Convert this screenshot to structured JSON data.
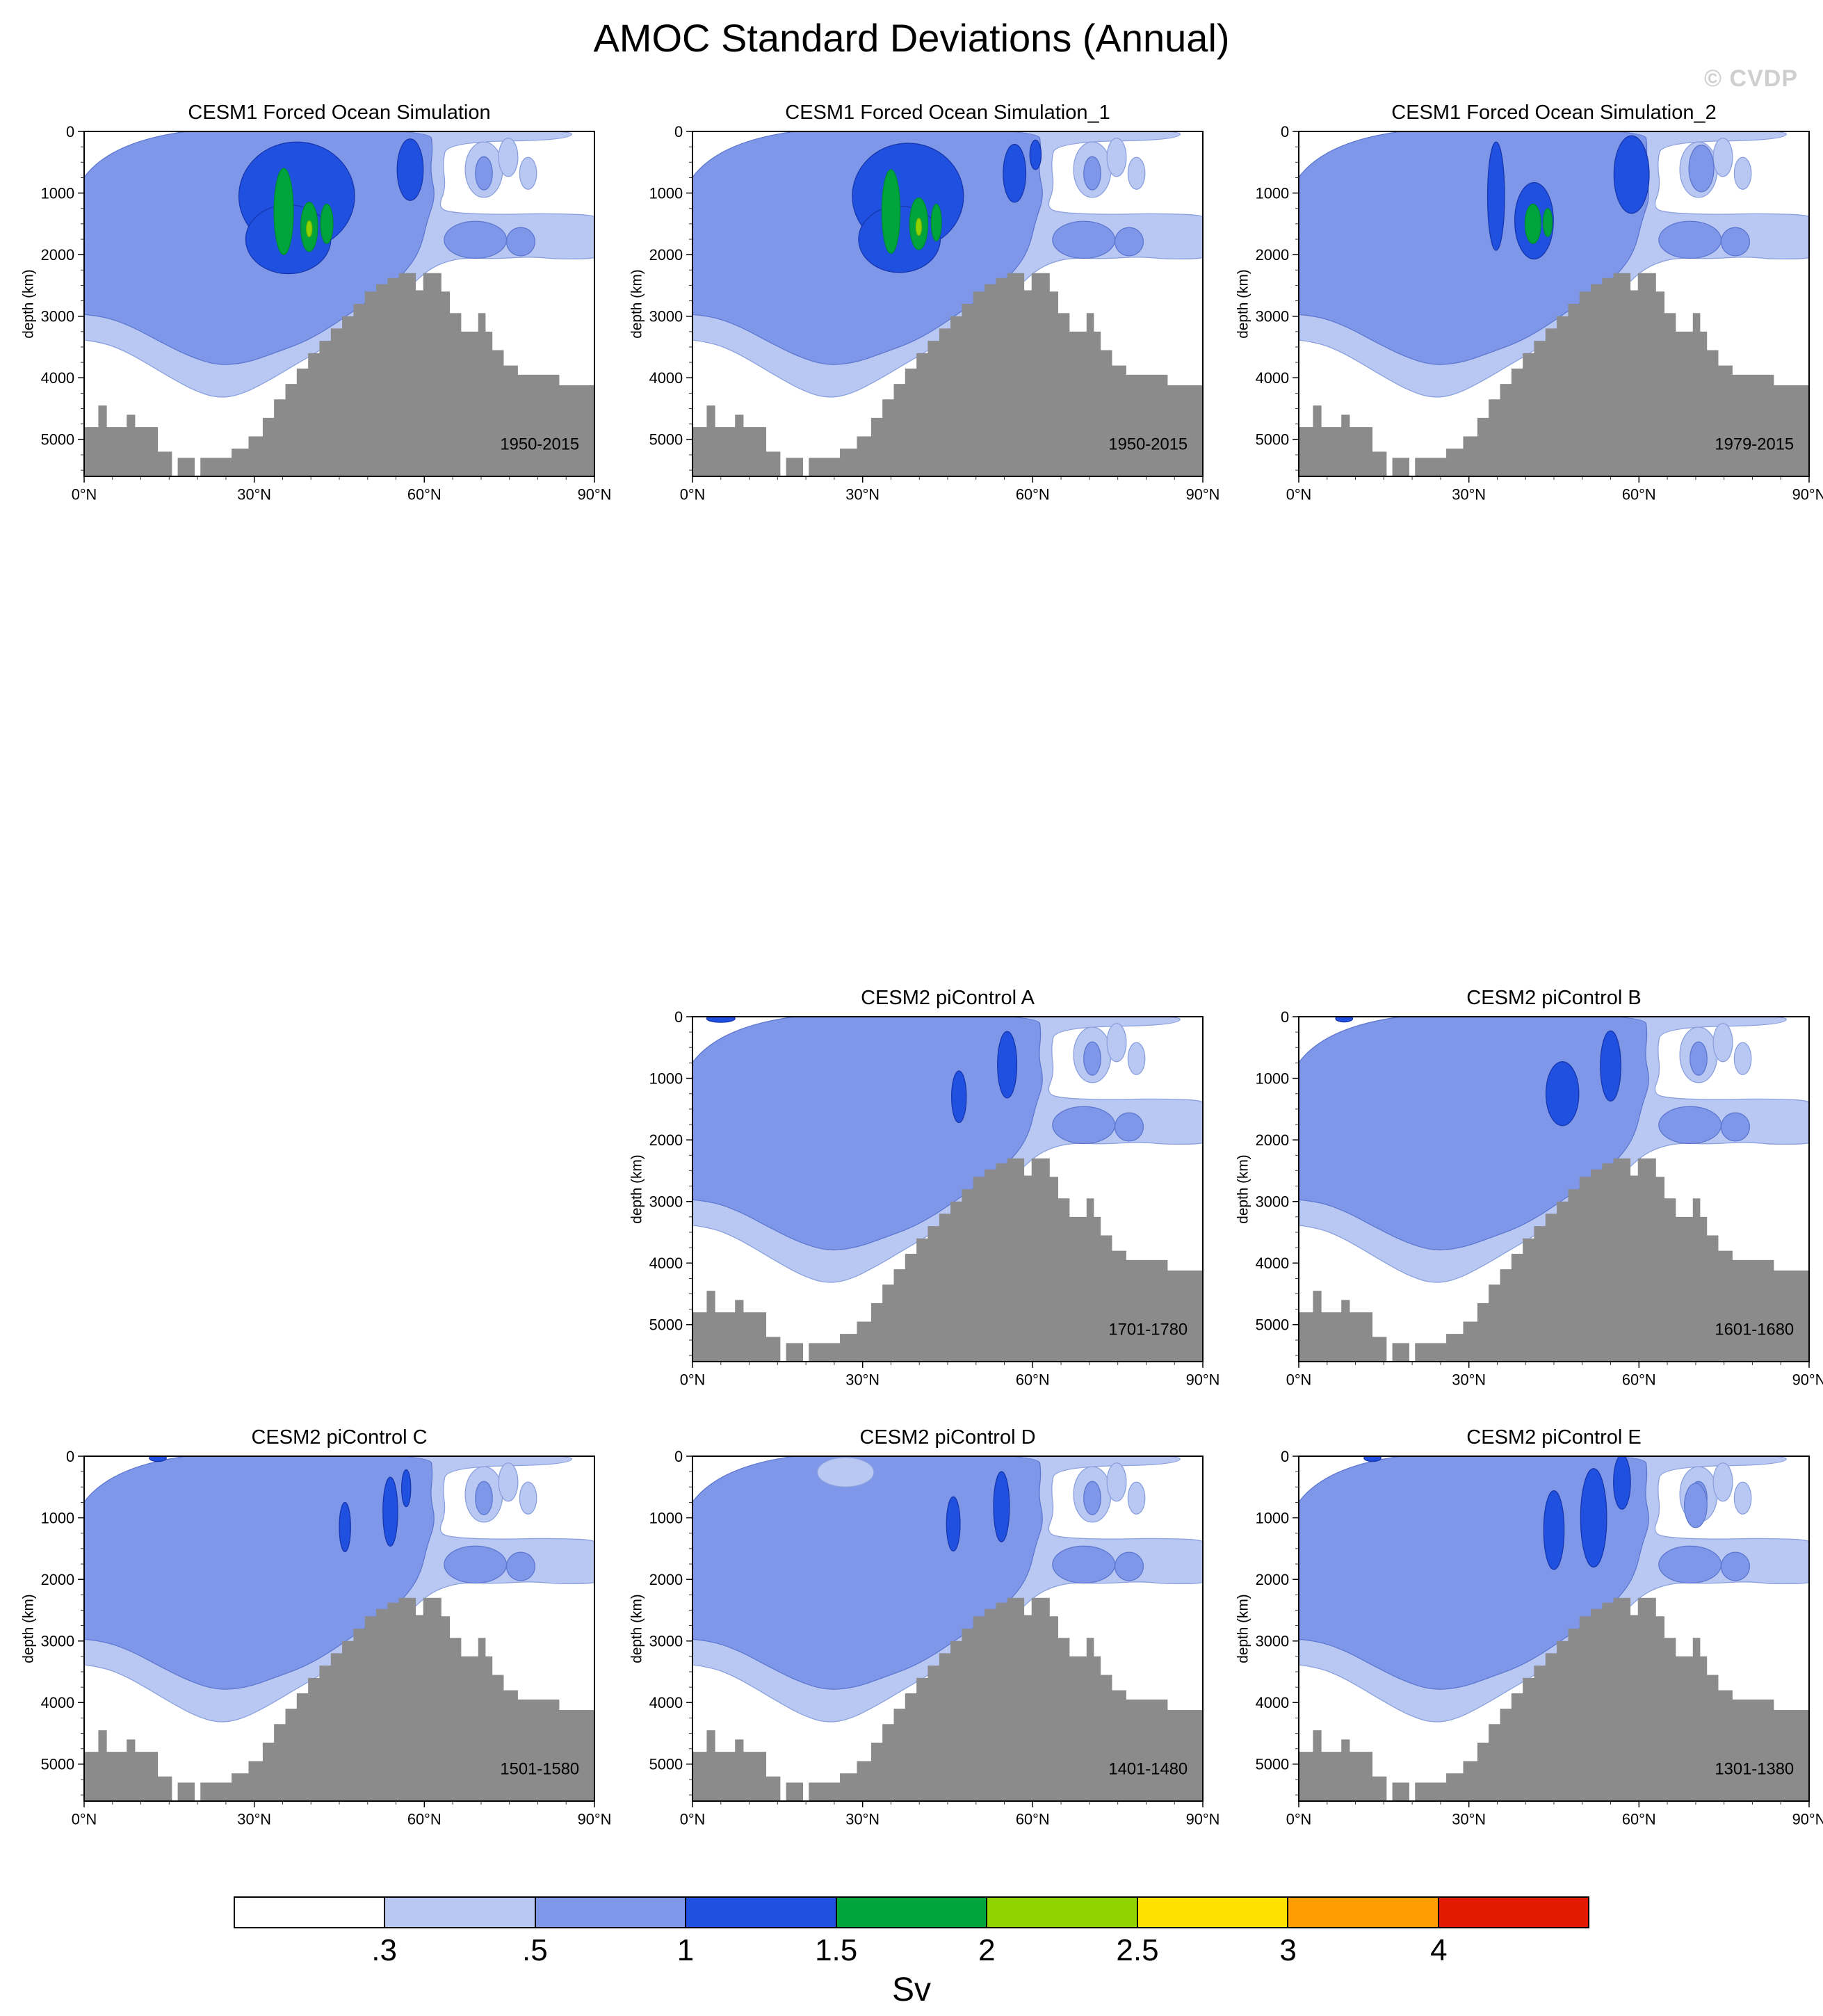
{
  "page": {
    "title": "AMOC Standard Deviations (Annual)",
    "watermark": "© CVDP"
  },
  "axes": {
    "x_ticks": [
      "0°N",
      "30°N",
      "60°N",
      "90°N"
    ],
    "x_tick_values": [
      0,
      30,
      60,
      90
    ],
    "x_minor_step": 5,
    "x_range": [
      0,
      90
    ],
    "y_label": "depth (km)",
    "y_ticks": [
      "0",
      "1000",
      "2000",
      "3000",
      "4000",
      "5000"
    ],
    "y_tick_values": [
      0,
      1000,
      2000,
      3000,
      4000,
      5000
    ],
    "y_minor_step": 250,
    "y_range": [
      0,
      5600
    ]
  },
  "chart_data": {
    "type": "filled-contour",
    "title": "AMOC Standard Deviations (Annual)",
    "units": "Sv",
    "colorbar": {
      "labels": [
        ".3",
        ".5",
        "1",
        "1.5",
        "2",
        "2.5",
        "3",
        "4"
      ],
      "colors": [
        "#ffffff",
        "#b9c8f3",
        "#7f97e9",
        "#2050e0",
        "#00a43c",
        "#8fd400",
        "#ffe100",
        "#ff9d00",
        "#e41a00"
      ]
    },
    "level_colors": {
      "white": "#ffffff",
      "light": "#b9c8f3",
      "medium": "#7f97e9",
      "dark": "#2050e0",
      "green": "#00a43c",
      "chartreuse": "#8fd400",
      "bathymetry": "#8b8b8b"
    },
    "geometry": {
      "bathymetry_steps": [
        [
          0,
          4800
        ],
        [
          2.5,
          4450
        ],
        [
          4,
          4800
        ],
        [
          7.5,
          4600
        ],
        [
          9,
          4800
        ],
        [
          13,
          5200
        ],
        [
          15.5,
          5600
        ],
        [
          16.5,
          5300
        ],
        [
          19.5,
          5600
        ],
        [
          20.5,
          5300
        ],
        [
          26,
          5150
        ],
        [
          29,
          4950
        ],
        [
          31.5,
          4650
        ],
        [
          33.5,
          4350
        ],
        [
          35.5,
          4100
        ],
        [
          37.5,
          3850
        ],
        [
          39.5,
          3600
        ],
        [
          41.5,
          3400
        ],
        [
          43.5,
          3200
        ],
        [
          45.5,
          3000
        ],
        [
          47.5,
          2800
        ],
        [
          49.5,
          2600
        ],
        [
          51.5,
          2480
        ],
        [
          53.5,
          2380
        ],
        [
          55.5,
          2300
        ],
        [
          58.5,
          2580
        ],
        [
          59.8,
          2300
        ],
        [
          63,
          2600
        ],
        [
          64.5,
          2950
        ],
        [
          66.5,
          3250
        ],
        [
          69.5,
          2950
        ],
        [
          70.8,
          3250
        ],
        [
          72,
          3550
        ],
        [
          74,
          3800
        ],
        [
          76.5,
          3950
        ],
        [
          83,
          3950
        ],
        [
          83.8,
          4120
        ],
        [
          90,
          4120
        ]
      ],
      "light_region": [
        [
          -2,
          -60
        ],
        [
          86,
          -60
        ],
        [
          86,
          140
        ],
        [
          64,
          170
        ],
        [
          63.2,
          520
        ],
        [
          63.8,
          920
        ],
        [
          62.3,
          1260
        ],
        [
          66,
          1330
        ],
        [
          74,
          1350
        ],
        [
          82,
          1330
        ],
        [
          93,
          1370
        ],
        [
          93,
          2050
        ],
        [
          84,
          2080
        ],
        [
          79,
          2030
        ],
        [
          73,
          2070
        ],
        [
          67,
          2050
        ],
        [
          63.5,
          2120
        ],
        [
          60.5,
          2260
        ],
        [
          57.5,
          2520
        ],
        [
          53.5,
          2820
        ],
        [
          49.5,
          3070
        ],
        [
          45.5,
          3320
        ],
        [
          41.5,
          3560
        ],
        [
          37,
          3800
        ],
        [
          32.5,
          4050
        ],
        [
          27.5,
          4280
        ],
        [
          23.5,
          4330
        ],
        [
          19.5,
          4210
        ],
        [
          15.5,
          4010
        ],
        [
          11.5,
          3790
        ],
        [
          7.5,
          3580
        ],
        [
          3.5,
          3430
        ],
        [
          -3,
          3350
        ]
      ],
      "medium_region": [
        [
          -2,
          -60
        ],
        [
          61,
          -60
        ],
        [
          61.5,
          280
        ],
        [
          61,
          650
        ],
        [
          62,
          1050
        ],
        [
          60.5,
          1450
        ],
        [
          59.5,
          1850
        ],
        [
          57.8,
          2150
        ],
        [
          54.5,
          2480
        ],
        [
          50.5,
          2730
        ],
        [
          46.5,
          2980
        ],
        [
          42.5,
          3230
        ],
        [
          38.5,
          3430
        ],
        [
          33.5,
          3600
        ],
        [
          28.5,
          3760
        ],
        [
          23.5,
          3800
        ],
        [
          18.5,
          3650
        ],
        [
          13.5,
          3420
        ],
        [
          8.5,
          3170
        ],
        [
          3.5,
          3000
        ],
        [
          -3,
          2950
        ]
      ],
      "light_patches": [
        {
          "x": 70.5,
          "y": 620,
          "rx": 3.3,
          "ry": 450
        },
        {
          "x": 74.8,
          "y": 420,
          "rx": 1.7,
          "ry": 310
        },
        {
          "x": 78.3,
          "y": 680,
          "rx": 1.5,
          "ry": 260
        }
      ],
      "medium_patches": [
        {
          "x": 69,
          "y": 1760,
          "rx": 5.5,
          "ry": 300
        },
        {
          "x": 77,
          "y": 1790,
          "rx": 2.5,
          "ry": 230
        },
        {
          "x": 70.5,
          "y": 680,
          "rx": 1.5,
          "ry": 270
        }
      ]
    },
    "panels": [
      {
        "title": "CESM1 Forced Ocean Simulation",
        "period": "1950-2015",
        "row": 0,
        "col": 0,
        "features": [
          {
            "level": "dark",
            "x": 37.5,
            "y": 1050,
            "rx": 10.2,
            "ry": 880
          },
          {
            "level": "dark",
            "x": 36,
            "y": 1750,
            "rx": 7.5,
            "ry": 560
          },
          {
            "level": "dark",
            "x": 57.5,
            "y": 620,
            "rx": 2.3,
            "ry": 500
          },
          {
            "level": "green",
            "x": 35.2,
            "y": 1300,
            "rx": 1.7,
            "ry": 700
          },
          {
            "level": "green",
            "x": 39.7,
            "y": 1550,
            "rx": 1.5,
            "ry": 400
          },
          {
            "level": "green",
            "x": 42.8,
            "y": 1500,
            "rx": 1.1,
            "ry": 320
          },
          {
            "level": "chartreuse",
            "x": 39.7,
            "y": 1580,
            "rx": 0.5,
            "ry": 130
          }
        ]
      },
      {
        "title": "CESM1 Forced Ocean Simulation_1",
        "period": "1950-2015",
        "row": 0,
        "col": 1,
        "features": [
          {
            "level": "dark",
            "x": 38,
            "y": 1050,
            "rx": 9.8,
            "ry": 860
          },
          {
            "level": "dark",
            "x": 36.5,
            "y": 1750,
            "rx": 7.2,
            "ry": 540
          },
          {
            "level": "dark",
            "x": 56.8,
            "y": 680,
            "rx": 2.0,
            "ry": 470
          },
          {
            "level": "dark",
            "x": 60.5,
            "y": 380,
            "rx": 1.0,
            "ry": 240
          },
          {
            "level": "green",
            "x": 35,
            "y": 1300,
            "rx": 1.6,
            "ry": 680
          },
          {
            "level": "green",
            "x": 39.9,
            "y": 1500,
            "rx": 1.6,
            "ry": 420
          },
          {
            "level": "green",
            "x": 43,
            "y": 1480,
            "rx": 0.9,
            "ry": 300
          },
          {
            "level": "chartreuse",
            "x": 39.9,
            "y": 1550,
            "rx": 0.5,
            "ry": 140
          }
        ]
      },
      {
        "title": "CESM1 Forced Ocean Simulation_2",
        "period": "1979-2015",
        "row": 0,
        "col": 2,
        "features": [
          {
            "level": "medium",
            "x": 71,
            "y": 600,
            "rx": 2.2,
            "ry": 380
          },
          {
            "level": "dark",
            "x": 34.8,
            "y": 1050,
            "rx": 1.5,
            "ry": 880
          },
          {
            "level": "dark",
            "x": 41.5,
            "y": 1450,
            "rx": 3.4,
            "ry": 620
          },
          {
            "level": "dark",
            "x": 58.7,
            "y": 700,
            "rx": 3.1,
            "ry": 630
          },
          {
            "level": "green",
            "x": 41.3,
            "y": 1500,
            "rx": 1.4,
            "ry": 320
          },
          {
            "level": "green",
            "x": 43.9,
            "y": 1480,
            "rx": 0.8,
            "ry": 230
          }
        ]
      },
      {
        "title": "CESM2 piControl A",
        "period": "1701-1780",
        "row": 1,
        "col": 1,
        "features": [
          {
            "level": "dark",
            "x": 47,
            "y": 1300,
            "rx": 1.3,
            "ry": 420
          },
          {
            "level": "dark",
            "x": 55.5,
            "y": 780,
            "rx": 1.7,
            "ry": 540
          },
          {
            "level": "dark",
            "x": 5,
            "y": 30,
            "rx": 2.5,
            "ry": 60
          }
        ]
      },
      {
        "title": "CESM2 piControl B",
        "period": "1601-1680",
        "row": 1,
        "col": 2,
        "features": [
          {
            "level": "dark",
            "x": 46.5,
            "y": 1250,
            "rx": 2.9,
            "ry": 520
          },
          {
            "level": "dark",
            "x": 55,
            "y": 800,
            "rx": 1.8,
            "ry": 570
          },
          {
            "level": "dark",
            "x": 8,
            "y": 30,
            "rx": 1.5,
            "ry": 55
          }
        ]
      },
      {
        "title": "CESM2 piControl C",
        "period": "1501-1580",
        "row": 2,
        "col": 0,
        "features": [
          {
            "level": "dark",
            "x": 46,
            "y": 1150,
            "rx": 1.0,
            "ry": 400
          },
          {
            "level": "dark",
            "x": 54,
            "y": 900,
            "rx": 1.3,
            "ry": 560
          },
          {
            "level": "dark",
            "x": 56.8,
            "y": 520,
            "rx": 0.8,
            "ry": 300
          },
          {
            "level": "dark",
            "x": 13,
            "y": 30,
            "rx": 1.5,
            "ry": 55
          }
        ]
      },
      {
        "title": "CESM2 piControl D",
        "period": "1401-1480",
        "row": 2,
        "col": 1,
        "features": [
          {
            "level": "light",
            "x": 27,
            "y": 260,
            "rx": 5,
            "ry": 240
          },
          {
            "level": "dark",
            "x": 46,
            "y": 1100,
            "rx": 1.2,
            "ry": 440
          },
          {
            "level": "dark",
            "x": 54.5,
            "y": 820,
            "rx": 1.4,
            "ry": 570
          }
        ]
      },
      {
        "title": "CESM2 piControl E",
        "period": "1301-1380",
        "row": 2,
        "col": 2,
        "features": [
          {
            "level": "medium",
            "x": 70,
            "y": 800,
            "rx": 2.0,
            "ry": 360
          },
          {
            "level": "dark",
            "x": 45,
            "y": 1200,
            "rx": 1.8,
            "ry": 640
          },
          {
            "level": "dark",
            "x": 52,
            "y": 1000,
            "rx": 2.3,
            "ry": 800
          },
          {
            "level": "dark",
            "x": 57,
            "y": 420,
            "rx": 1.5,
            "ry": 440
          },
          {
            "level": "dark",
            "x": 13,
            "y": 30,
            "rx": 1.5,
            "ry": 55
          }
        ]
      }
    ]
  }
}
